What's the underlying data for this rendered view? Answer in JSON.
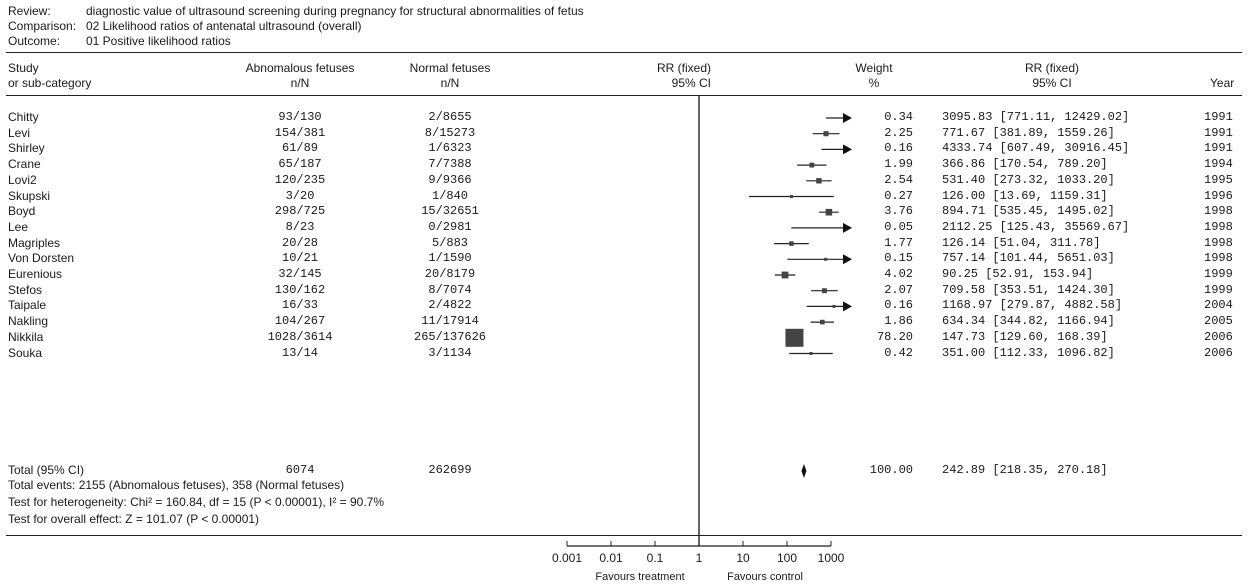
{
  "header": {
    "review_label": "Review:",
    "review_value": "diagnostic value of ultrasound screening during pregnancy for structural abnormalities of fetus",
    "comparison_label": "Comparison:",
    "comparison_value": "02 Likelihood ratios of antenatal ultrasound (overall)",
    "outcome_label": "Outcome:",
    "outcome_value": "01 Positive likelihood ratios"
  },
  "columns": {
    "study_line1": "Study",
    "study_line2": "or sub-category",
    "abn_line1": "Abnomalous fetuses",
    "abn_line2": "n/N",
    "norm_line1": "Normal fetuses",
    "norm_line2": "n/N",
    "rr_plot_line1": "RR (fixed)",
    "rr_plot_line2": "95% CI",
    "weight_line1": "Weight",
    "weight_line2": "%",
    "rr_line1": "RR (fixed)",
    "rr_line2": "95% CI",
    "year": "Year"
  },
  "studies": [
    {
      "name": "Chitty",
      "abn": "93/130",
      "norm": "2/8655",
      "weight": "0.34",
      "rr_text": "3095.83 [771.11, 12429.02]",
      "year": "1991"
    },
    {
      "name": "Levi",
      "abn": "154/381",
      "norm": "8/15273",
      "weight": "2.25",
      "rr_text": "771.67 [381.89, 1559.26]",
      "year": "1991"
    },
    {
      "name": "Shirley",
      "abn": "61/89",
      "norm": "1/6323",
      "weight": "0.16",
      "rr_text": "4333.74 [607.49, 30916.45]",
      "year": "1991"
    },
    {
      "name": "Crane",
      "abn": "65/187",
      "norm": "7/7388",
      "weight": "1.99",
      "rr_text": "366.86 [170.54, 789.20]",
      "year": "1994"
    },
    {
      "name": "Lovi2",
      "abn": "120/235",
      "norm": "9/9366",
      "weight": "2.54",
      "rr_text": "531.40 [273.32, 1033.20]",
      "year": "1995"
    },
    {
      "name": "Skupski",
      "abn": "3/20",
      "norm": "1/840",
      "weight": "0.27",
      "rr_text": "126.00 [13.69, 1159.31]",
      "year": "1996"
    },
    {
      "name": "Boyd",
      "abn": "298/725",
      "norm": "15/32651",
      "weight": "3.76",
      "rr_text": "894.71 [535.45, 1495.02]",
      "year": "1998"
    },
    {
      "name": "Lee",
      "abn": "8/23",
      "norm": "0/2981",
      "weight": "0.05",
      "rr_text": "2112.25 [125.43, 35569.67]",
      "year": "1998"
    },
    {
      "name": "Magriples",
      "abn": "20/28",
      "norm": "5/883",
      "weight": "1.77",
      "rr_text": "126.14 [51.04, 311.78]",
      "year": "1998"
    },
    {
      "name": "Von Dorsten",
      "abn": "10/21",
      "norm": "1/1590",
      "weight": "0.15",
      "rr_text": "757.14 [101.44, 5651.03]",
      "year": "1998"
    },
    {
      "name": "Eurenious",
      "abn": "32/145",
      "norm": "20/8179",
      "weight": "4.02",
      "rr_text": "90.25 [52.91, 153.94]",
      "year": "1999"
    },
    {
      "name": "Stefos",
      "abn": "130/162",
      "norm": "8/7074",
      "weight": "2.07",
      "rr_text": "709.58 [353.51, 1424.30]",
      "year": "1999"
    },
    {
      "name": "Taipale",
      "abn": "16/33",
      "norm": "2/4822",
      "weight": "0.16",
      "rr_text": "1168.97 [279.87, 4882.58]",
      "year": "2004"
    },
    {
      "name": "Nakling",
      "abn": "104/267",
      "norm": "11/17914",
      "weight": "1.86",
      "rr_text": "634.34 [344.82, 1166.94]",
      "year": "2005"
    },
    {
      "name": "Nikkila",
      "abn": "1028/3614",
      "norm": "265/137626",
      "weight": "78.20",
      "rr_text": "147.73 [129.60, 168.39]",
      "year": "2006"
    },
    {
      "name": "Souka",
      "abn": "13/14",
      "norm": "3/1134",
      "weight": "0.42",
      "rr_text": "351.00 [112.33, 1096.82]",
      "year": "2006"
    }
  ],
  "total": {
    "label": "Total (95% CI)",
    "abn": "6074",
    "norm": "262699",
    "weight": "100.00",
    "rr_text": "242.89 [218.35, 270.18]",
    "events_text": "Total events: 2155 (Abnomalous fetuses), 358 (Normal fetuses)",
    "heterogeneity_text": "Test for heterogeneity: Chi² = 160.84, df = 15 (P < 0.00001), I² = 90.7%",
    "overall_effect_text": "Test for overall effect: Z = 101.07 (P < 0.00001)"
  },
  "axis": {
    "ticks": [
      "0.001",
      "0.01",
      "0.1",
      "1",
      "10",
      "100",
      "1000"
    ],
    "favours_left": "Favours treatment",
    "favours_right": "Favours control"
  },
  "chart_data": {
    "type": "forest",
    "scale": "log",
    "xlim": [
      0.001,
      1000
    ],
    "reference_line": 1,
    "x_ticks": [
      0.001,
      0.01,
      0.1,
      1,
      10,
      100,
      1000
    ],
    "series": [
      {
        "name": "Chitty",
        "rr": 3095.83,
        "lower": 771.11,
        "upper": 12429.02,
        "weight": 0.34
      },
      {
        "name": "Levi",
        "rr": 771.67,
        "lower": 381.89,
        "upper": 1559.26,
        "weight": 2.25
      },
      {
        "name": "Shirley",
        "rr": 4333.74,
        "lower": 607.49,
        "upper": 30916.45,
        "weight": 0.16
      },
      {
        "name": "Crane",
        "rr": 366.86,
        "lower": 170.54,
        "upper": 789.2,
        "weight": 1.99
      },
      {
        "name": "Lovi2",
        "rr": 531.4,
        "lower": 273.32,
        "upper": 1033.2,
        "weight": 2.54
      },
      {
        "name": "Skupski",
        "rr": 126.0,
        "lower": 13.69,
        "upper": 1159.31,
        "weight": 0.27
      },
      {
        "name": "Boyd",
        "rr": 894.71,
        "lower": 535.45,
        "upper": 1495.02,
        "weight": 3.76
      },
      {
        "name": "Lee",
        "rr": 2112.25,
        "lower": 125.43,
        "upper": 35569.67,
        "weight": 0.05
      },
      {
        "name": "Magriples",
        "rr": 126.14,
        "lower": 51.04,
        "upper": 311.78,
        "weight": 1.77
      },
      {
        "name": "Von Dorsten",
        "rr": 757.14,
        "lower": 101.44,
        "upper": 5651.03,
        "weight": 0.15
      },
      {
        "name": "Eurenious",
        "rr": 90.25,
        "lower": 52.91,
        "upper": 153.94,
        "weight": 4.02
      },
      {
        "name": "Stefos",
        "rr": 709.58,
        "lower": 353.51,
        "upper": 1424.3,
        "weight": 2.07
      },
      {
        "name": "Taipale",
        "rr": 1168.97,
        "lower": 279.87,
        "upper": 4882.58,
        "weight": 0.16
      },
      {
        "name": "Nakling",
        "rr": 634.34,
        "lower": 344.82,
        "upper": 1166.94,
        "weight": 1.86
      },
      {
        "name": "Nikkila",
        "rr": 147.73,
        "lower": 129.6,
        "upper": 168.39,
        "weight": 78.2
      },
      {
        "name": "Souka",
        "rr": 351.0,
        "lower": 112.33,
        "upper": 1096.82,
        "weight": 0.42
      }
    ],
    "pooled": {
      "name": "Total (95% CI)",
      "rr": 242.89,
      "lower": 218.35,
      "upper": 270.18,
      "weight": 100.0
    }
  }
}
